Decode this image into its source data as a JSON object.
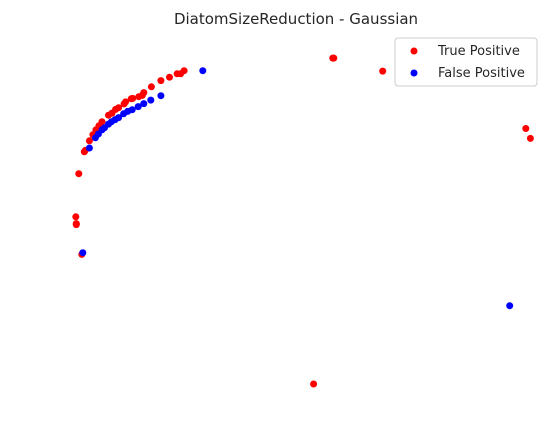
{
  "chart_data": {
    "type": "scatter",
    "title": "DiatomSizeReduction - Gaussian",
    "xlabel": "",
    "ylabel": "",
    "axes_visible": false,
    "grid": false,
    "legend_placement": "top-right",
    "xlim": [
      0,
      1
    ],
    "ylim": [
      0,
      1
    ],
    "series": [
      {
        "name": "True Positive",
        "color": "#ff0000",
        "points": [
          [
            0.573,
            0.953
          ],
          [
            0.575,
            0.953
          ],
          [
            0.672,
            0.915
          ],
          [
            0.956,
            0.747
          ],
          [
            0.965,
            0.718
          ],
          [
            0.535,
            0.0
          ],
          [
            0.278,
            0.916
          ],
          [
            0.271,
            0.907
          ],
          [
            0.264,
            0.907
          ],
          [
            0.249,
            0.897
          ],
          [
            0.232,
            0.887
          ],
          [
            0.213,
            0.869
          ],
          [
            0.198,
            0.852
          ],
          [
            0.195,
            0.844
          ],
          [
            0.188,
            0.84
          ],
          [
            0.176,
            0.835
          ],
          [
            0.173,
            0.834
          ],
          [
            0.162,
            0.825
          ],
          [
            0.159,
            0.819
          ],
          [
            0.148,
            0.808
          ],
          [
            0.142,
            0.803
          ],
          [
            0.135,
            0.792
          ],
          [
            0.128,
            0.786
          ],
          [
            0.115,
            0.767
          ],
          [
            0.109,
            0.755
          ],
          [
            0.103,
            0.743
          ],
          [
            0.097,
            0.729
          ],
          [
            0.09,
            0.711
          ],
          [
            0.082,
            0.683
          ],
          [
            0.08,
            0.679
          ],
          [
            0.069,
            0.615
          ],
          [
            0.063,
            0.489
          ],
          [
            0.064,
            0.469
          ],
          [
            0.064,
            0.466
          ],
          [
            0.075,
            0.379
          ]
        ]
      },
      {
        "name": "False Positive",
        "color": "#0000ff",
        "points": [
          [
            0.315,
            0.916
          ],
          [
            0.924,
            0.229
          ],
          [
            0.077,
            0.384
          ],
          [
            0.09,
            0.69
          ],
          [
            0.102,
            0.72
          ],
          [
            0.108,
            0.731
          ],
          [
            0.115,
            0.743
          ],
          [
            0.12,
            0.749
          ],
          [
            0.128,
            0.76
          ],
          [
            0.134,
            0.767
          ],
          [
            0.141,
            0.773
          ],
          [
            0.148,
            0.779
          ],
          [
            0.158,
            0.79
          ],
          [
            0.166,
            0.797
          ],
          [
            0.175,
            0.802
          ],
          [
            0.187,
            0.811
          ],
          [
            0.198,
            0.82
          ],
          [
            0.212,
            0.83
          ],
          [
            0.232,
            0.843
          ]
        ]
      }
    ]
  }
}
